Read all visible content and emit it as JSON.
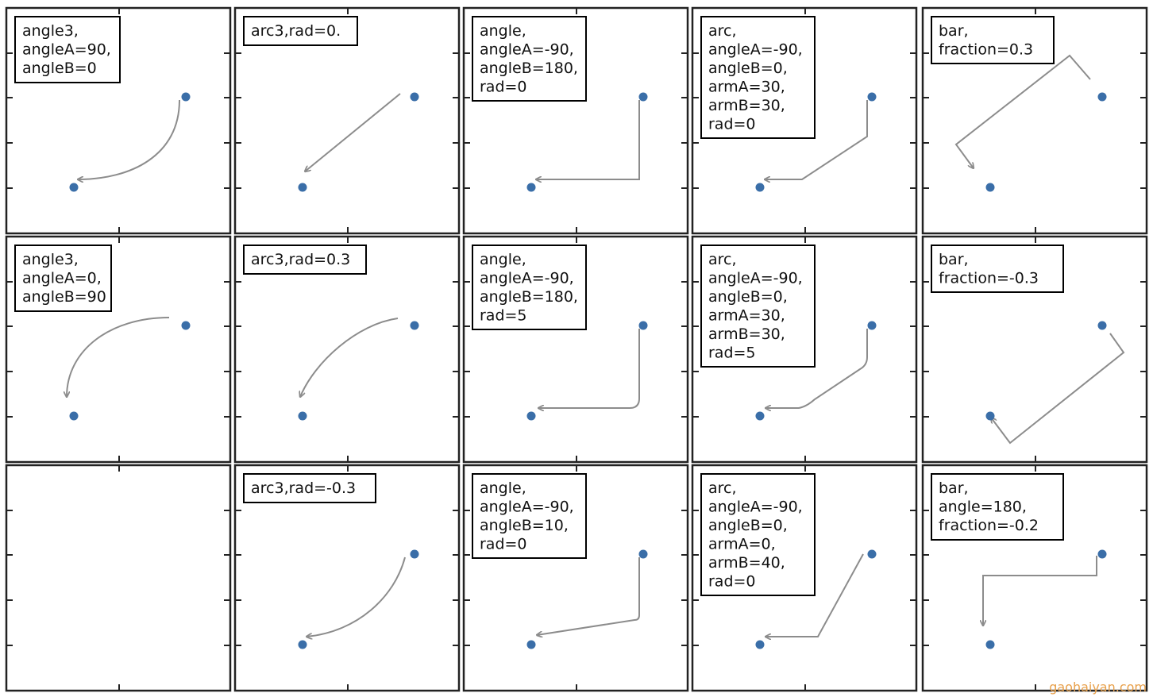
{
  "colors": {
    "frame": "#222222",
    "point": "#3a6ea8",
    "arrow": "#8c8c8c",
    "box_border": "#000000",
    "watermark": "#e8a04a"
  },
  "panels": [
    {
      "id": "r1c1",
      "label_lines": [
        "angle3,",
        "angleA=90,",
        "angleB=0"
      ],
      "connector": "angle3",
      "angleA": 90,
      "angleB": 0
    },
    {
      "id": "r1c2",
      "label_lines": [
        "arc3,rad=0."
      ],
      "connector": "arc3",
      "rad": 0
    },
    {
      "id": "r1c3",
      "label_lines": [
        "angle,",
        "angleA=-90,",
        "angleB=180,",
        "rad=0"
      ],
      "connector": "angle",
      "angleA": -90,
      "angleB": 180,
      "rad": 0
    },
    {
      "id": "r1c4",
      "label_lines": [
        "arc,",
        "angleA=-90,",
        "angleB=0,",
        "armA=30,",
        "armB=30,",
        "rad=0"
      ],
      "connector": "arc",
      "angleA": -90,
      "angleB": 0,
      "armA": 30,
      "armB": 30,
      "rad": 0
    },
    {
      "id": "r1c5",
      "label_lines": [
        "bar,",
        "fraction=0.3"
      ],
      "connector": "bar",
      "fraction": 0.3
    },
    {
      "id": "r2c1",
      "label_lines": [
        "angle3,",
        "angleA=0,",
        "angleB=90"
      ],
      "connector": "angle3",
      "angleA": 0,
      "angleB": 90
    },
    {
      "id": "r2c2",
      "label_lines": [
        "arc3,rad=0.3"
      ],
      "connector": "arc3",
      "rad": 0.3
    },
    {
      "id": "r2c3",
      "label_lines": [
        "angle,",
        "angleA=-90,",
        "angleB=180,",
        "rad=5"
      ],
      "connector": "angle",
      "angleA": -90,
      "angleB": 180,
      "rad": 5
    },
    {
      "id": "r2c4",
      "label_lines": [
        "arc,",
        "angleA=-90,",
        "angleB=0,",
        "armA=30,",
        "armB=30,",
        "rad=5"
      ],
      "connector": "arc",
      "angleA": -90,
      "angleB": 0,
      "armA": 30,
      "armB": 30,
      "rad": 5
    },
    {
      "id": "r2c5",
      "label_lines": [
        "bar,",
        "fraction=-0.3"
      ],
      "connector": "bar",
      "fraction": -0.3
    },
    {
      "id": "r3c1",
      "label_lines": [],
      "connector": "none"
    },
    {
      "id": "r3c2",
      "label_lines": [
        "arc3,rad=-0.3"
      ],
      "connector": "arc3",
      "rad": -0.3
    },
    {
      "id": "r3c3",
      "label_lines": [
        "angle,",
        "angleA=-90,",
        "angleB=10,",
        "rad=0"
      ],
      "connector": "angle",
      "angleA": -90,
      "angleB": 10,
      "rad": 0
    },
    {
      "id": "r3c4",
      "label_lines": [
        "arc,",
        "angleA=-90,",
        "angleB=0,",
        "armA=0,",
        "armB=40,",
        "rad=0"
      ],
      "connector": "arc",
      "angleA": -90,
      "angleB": 0,
      "armA": 0,
      "armB": 40,
      "rad": 0
    },
    {
      "id": "r3c5",
      "label_lines": [
        "bar,",
        "angle=180,",
        "fraction=-0.2"
      ],
      "connector": "bar",
      "angle": 180,
      "fraction": -0.2
    }
  ],
  "watermark": "gaohaiyan.com"
}
